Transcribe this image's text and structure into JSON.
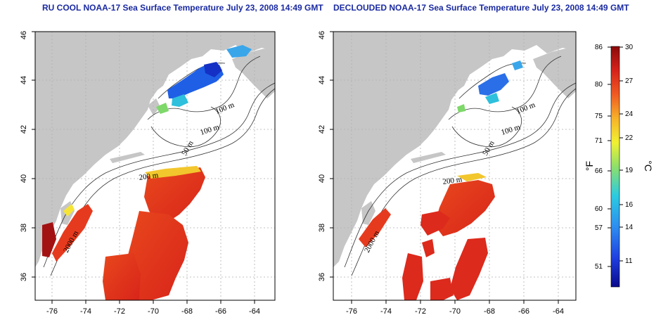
{
  "titles": {
    "left": "RU COOL NOAA-17 Sea Surface Temperature July 23, 2008 14:49 GMT",
    "right": "DECLOUDED NOAA-17 Sea Surface Temperature July 23, 2008 14:49 GMT"
  },
  "axes": {
    "lon_ticks": [
      "-76",
      "-74",
      "-72",
      "-70",
      "-68",
      "-66",
      "-64"
    ],
    "lat_ticks": [
      "36",
      "38",
      "40",
      "42",
      "44",
      "46"
    ],
    "lon_range": [
      -77.2,
      -63.0
    ],
    "lat_range": [
      35.0,
      46.0
    ]
  },
  "contour_labels": [
    "100 m",
    "100 m",
    "50 m",
    "200 m",
    "2000 m"
  ],
  "colorbar": {
    "fahrenheit_label": "°F",
    "celsius_label": "°C",
    "f_ticks": [
      "86",
      "80",
      "75",
      "71",
      "66",
      "60",
      "57",
      "51"
    ],
    "c_ticks": [
      "30",
      "27",
      "24",
      "22",
      "19",
      "16",
      "14",
      "11"
    ],
    "colors": [
      "#0a0a8c",
      "#1f3fe0",
      "#2d8ef0",
      "#2ccbe0",
      "#8ee06a",
      "#f1f132",
      "#f7b22a",
      "#ef5b22",
      "#d6221b",
      "#8a0a0a"
    ]
  },
  "colors": {
    "land": "#c6c6c6",
    "ocean": "#ffffff",
    "warm": "#e0311f",
    "grid": "#b0b0b0"
  }
}
